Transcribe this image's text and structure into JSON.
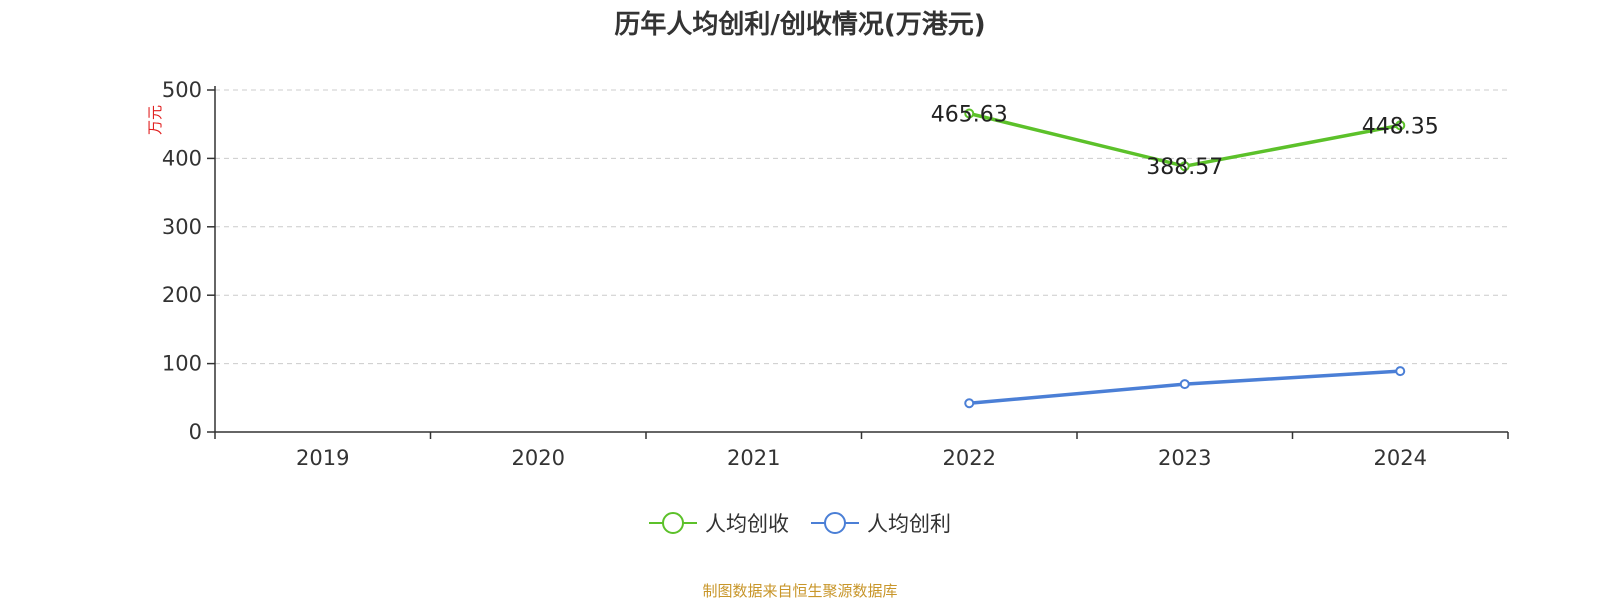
{
  "title": "历年人均创利/创收情况(万港元)",
  "source": "制图数据来自恒生聚源数据库",
  "colors": {
    "revenue": "#5cc12a",
    "profit": "#4b7fd6",
    "ylabel": "#e02020",
    "source": "#c8962a"
  },
  "chart_data": {
    "type": "line",
    "title": "历年人均创利/创收情况(万港元)",
    "ylabel": "万元",
    "ylim": [
      0,
      500
    ],
    "yticks": [
      0,
      100,
      200,
      300,
      400,
      500
    ],
    "grid": true,
    "legend_position": "bottom",
    "categories": [
      "2019",
      "2020",
      "2021",
      "2022",
      "2023",
      "2024"
    ],
    "series": [
      {
        "name": "人均创收",
        "color": "#5cc12a",
        "values": [
          null,
          null,
          null,
          465.63,
          388.57,
          448.35
        ],
        "labels": [
          "",
          "",
          "",
          "465.63",
          "388.57",
          "448.35"
        ]
      },
      {
        "name": "人均创利",
        "color": "#4b7fd6",
        "values": [
          null,
          null,
          null,
          42,
          70,
          89
        ],
        "labels": [
          "",
          "",
          "",
          "",
          "",
          ""
        ]
      }
    ]
  }
}
